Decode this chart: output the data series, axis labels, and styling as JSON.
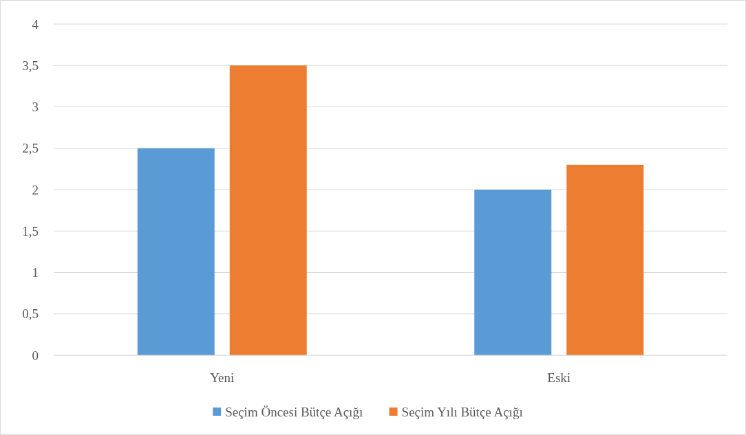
{
  "chart_data": {
    "type": "bar",
    "categories": [
      "Yeni",
      "Eski"
    ],
    "series": [
      {
        "name": "Seçim Öncesi Bütçe Açığı",
        "color": "#5b9bd5",
        "values": [
          2.5,
          2
        ]
      },
      {
        "name": "Seçim Yılı Bütçe Açığı",
        "color": "#ed7d31",
        "values": [
          3.5,
          2.3
        ]
      }
    ],
    "ylim": [
      0,
      4
    ],
    "yticks": [
      0,
      {
        "value": 0.5,
        "label": "0,5"
      },
      1,
      {
        "value": 1.5,
        "label": "1,5"
      },
      2,
      {
        "value": 2.5,
        "label": "2,5"
      },
      3,
      {
        "value": 3.5,
        "label": "3,5"
      },
      4
    ],
    "grid": "y",
    "legend": "bottom"
  }
}
